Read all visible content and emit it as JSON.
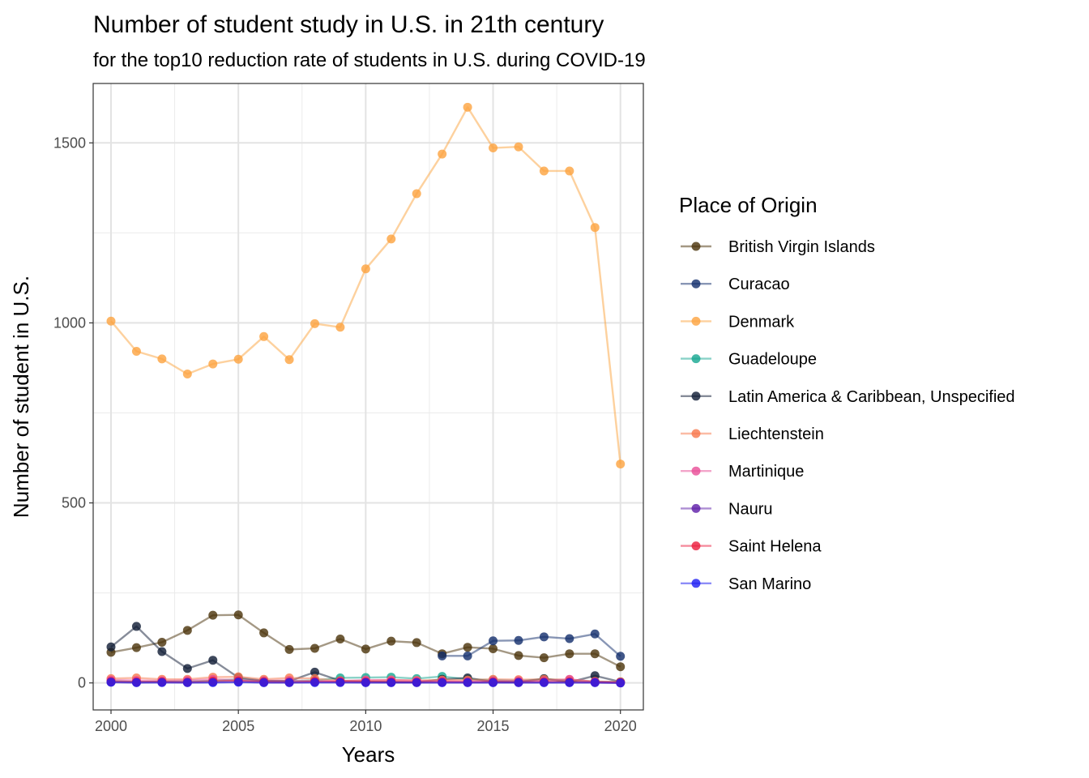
{
  "chart_data": {
    "type": "line",
    "title": "Number of student study in U.S. in 21th century",
    "subtitle": "for the top10 reduction rate of students in U.S. during COVID-19",
    "xlabel": "Years",
    "ylabel": "Number of student in U.S.",
    "xlim": [
      1999.3,
      2020.9
    ],
    "ylim": [
      -75,
      1665
    ],
    "x_ticks": [
      2000,
      2005,
      2010,
      2015,
      2020
    ],
    "y_ticks": [
      0,
      500,
      1000,
      1500
    ],
    "y_minor_ticks": [
      250,
      750,
      1250
    ],
    "grid": true,
    "legend_title": "Place of Origin",
    "legend_position": "right",
    "x": [
      2000,
      2001,
      2002,
      2003,
      2004,
      2005,
      2006,
      2007,
      2008,
      2009,
      2010,
      2011,
      2012,
      2013,
      2014,
      2015,
      2016,
      2017,
      2018,
      2019,
      2020
    ],
    "series": [
      {
        "name": "British Virgin Islands",
        "color": "#4a3209",
        "values": [
          85,
          98,
          113,
          146,
          188,
          189,
          139,
          93,
          96,
          122,
          94,
          116,
          112,
          81,
          99,
          95,
          76,
          70,
          81,
          81,
          45
        ]
      },
      {
        "name": "Curacao",
        "color": "#122d6b",
        "values": [
          null,
          null,
          null,
          null,
          null,
          null,
          null,
          null,
          null,
          null,
          null,
          null,
          null,
          75,
          75,
          117,
          118,
          128,
          123,
          136,
          74
        ]
      },
      {
        "name": "Denmark",
        "color": "#fca33e",
        "values": [
          1005,
          921,
          900,
          858,
          886,
          899,
          962,
          898,
          998,
          988,
          1150,
          1233,
          1359,
          1469,
          1599,
          1486,
          1489,
          1422,
          1422,
          1265,
          608
        ]
      },
      {
        "name": "Guadeloupe",
        "color": "#14a690",
        "values": [
          5,
          3,
          4,
          4,
          6,
          10,
          5,
          5,
          7,
          14,
          15,
          16,
          12,
          18,
          10,
          8,
          6,
          10,
          7,
          4,
          2
        ]
      },
      {
        "name": "Latin America & Caribbean, Unspecified",
        "color": "#0e1a33",
        "values": [
          100,
          157,
          87,
          40,
          63,
          15,
          6,
          5,
          30,
          6,
          4,
          2,
          2,
          10,
          14,
          3,
          2,
          12,
          2,
          20,
          3
        ]
      },
      {
        "name": "Liechtenstein",
        "color": "#f7774b",
        "values": [
          12,
          14,
          10,
          10,
          16,
          17,
          10,
          14,
          12,
          6,
          6,
          8,
          7,
          8,
          8,
          10,
          9,
          10,
          9,
          4,
          3
        ]
      },
      {
        "name": "Martinique",
        "color": "#e84c96",
        "values": [
          8,
          7,
          6,
          7,
          10,
          8,
          6,
          7,
          5,
          5,
          8,
          8,
          6,
          5,
          4,
          6,
          6,
          6,
          10,
          3,
          1
        ]
      },
      {
        "name": "Nauru",
        "color": "#5c1ba8",
        "values": [
          2,
          1,
          2,
          1,
          2,
          3,
          1,
          1,
          2,
          2,
          1,
          1,
          1,
          1,
          1,
          1,
          1,
          1,
          1,
          1,
          0
        ]
      },
      {
        "name": "Saint Helena",
        "color": "#eb1a3b",
        "values": [
          4,
          3,
          3,
          2,
          5,
          6,
          3,
          2,
          4,
          3,
          3,
          3,
          2,
          3,
          2,
          3,
          2,
          3,
          3,
          2,
          1
        ]
      },
      {
        "name": "San Marino",
        "color": "#1c1cf2",
        "values": [
          2,
          1,
          1,
          1,
          1,
          2,
          1,
          1,
          1,
          1,
          1,
          1,
          1,
          1,
          1,
          1,
          1,
          1,
          1,
          1,
          0
        ]
      }
    ]
  }
}
